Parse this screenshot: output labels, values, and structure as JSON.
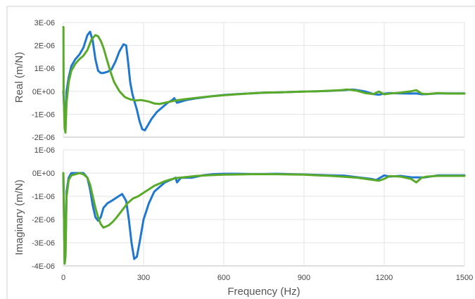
{
  "chart_data": [
    {
      "type": "line",
      "panel": "real",
      "ylabel": "Real (m/N)",
      "xlabel": "",
      "xlim": [
        0,
        1500
      ],
      "ylim": [
        -2e-06,
        3e-06
      ],
      "x_ticks": [
        "0",
        "300",
        "600",
        "900",
        "1200",
        "1500"
      ],
      "y_ticks": [
        "3E-06",
        "2E-06",
        "1E-06",
        "0E+00",
        "-1E-06",
        "-2E-06"
      ],
      "grid": true,
      "legend": "none",
      "series": [
        {
          "color": "#1f77d0",
          "x": [
            0,
            5,
            8,
            12,
            20,
            30,
            45,
            60,
            75,
            90,
            100,
            110,
            120,
            130,
            140,
            150,
            165,
            180,
            195,
            210,
            225,
            235,
            242,
            250,
            258,
            265,
            275,
            285,
            295,
            305,
            315,
            330,
            350,
            370,
            390,
            405,
            415,
            425,
            440,
            460,
            500,
            550,
            600,
            650,
            700,
            750,
            800,
            850,
            900,
            950,
            1000,
            1050,
            1080,
            1100,
            1130,
            1160,
            1180,
            1200,
            1220,
            1260,
            1300,
            1320,
            1340,
            1360,
            1400,
            1450,
            1500
          ],
          "y": [
            0,
            -1.2e-06,
            -1.5e-06,
            0,
            6e-07,
            1.1e-06,
            1.4e-06,
            1.6e-06,
            1.9e-06,
            2.45e-06,
            2.6e-06,
            2.2e-06,
            1.4e-06,
            9e-07,
            8e-07,
            8e-07,
            8.5e-07,
            9.5e-07,
            1.3e-06,
            1.75e-06,
            2.05e-06,
            2e-06,
            1.3e-06,
            4e-07,
            -1e-07,
            -4e-07,
            -8e-07,
            -1.3e-06,
            -1.65e-06,
            -1.7e-06,
            -1.5e-06,
            -1.2e-06,
            -9e-07,
            -7e-07,
            -5e-07,
            -4e-07,
            -3e-07,
            -5e-07,
            -4.5e-07,
            -3.8e-07,
            -3e-07,
            -2.2e-07,
            -1.6e-07,
            -1.2e-07,
            -9e-08,
            -6e-08,
            -5e-08,
            -3e-08,
            -1e-08,
            0,
            2e-08,
            5e-08,
            8e-08,
            5e-08,
            -1e-08,
            -1.2e-07,
            -1.5e-07,
            -1e-07,
            -8e-08,
            -9e-08,
            -1e-07,
            -9e-08,
            -1.3e-07,
            -1.2e-07,
            -9e-08,
            -9e-08,
            -9e-08
          ]
        },
        {
          "color": "#5aaa2a",
          "x": [
            0,
            0.5,
            1,
            5,
            8,
            12,
            20,
            30,
            45,
            60,
            75,
            90,
            105,
            120,
            130,
            140,
            150,
            160,
            175,
            190,
            210,
            230,
            250,
            270,
            290,
            300,
            320,
            340,
            360,
            380,
            400,
            420,
            450,
            500,
            550,
            600,
            650,
            700,
            750,
            800,
            850,
            900,
            950,
            1000,
            1040,
            1060,
            1080,
            1100,
            1130,
            1160,
            1180,
            1200,
            1220,
            1260,
            1300,
            1320,
            1340,
            1360,
            1400,
            1450,
            1500
          ],
          "y": [
            2.8e-06,
            2.8e-06,
            0,
            -1.6e-06,
            -1.8e-06,
            -5e-07,
            4e-07,
            9e-07,
            1.2e-06,
            1.4e-06,
            1.55e-06,
            1.8e-06,
            2.25e-06,
            2.45e-06,
            2.4e-06,
            2.2e-06,
            1.9e-06,
            1.5e-06,
            9e-07,
            4e-07,
            0,
            -2.5e-07,
            -3.5e-07,
            -4e-07,
            -3.8e-07,
            -4e-07,
            -4.5e-07,
            -5.3e-07,
            -5.5e-07,
            -5e-07,
            -4.5e-07,
            -4e-07,
            -3.5e-07,
            -2.8e-07,
            -2.2e-07,
            -1.7e-07,
            -1.3e-07,
            -9e-08,
            -6e-08,
            -5e-08,
            -3e-08,
            -1e-08,
            0,
            3e-08,
            5e-08,
            8e-08,
            6e-08,
            2e-08,
            -8e-08,
            -1.2e-07,
            -1e-08,
            -1.3e-07,
            -1e-07,
            -6e-08,
            0,
            5e-08,
            -1e-07,
            -1.2e-07,
            -8e-08,
            -1e-07,
            -1e-07
          ]
        }
      ]
    },
    {
      "type": "line",
      "panel": "imaginary",
      "ylabel": "Imaginary (m/N)",
      "xlabel": "Frequency (Hz)",
      "xlim": [
        0,
        1500
      ],
      "ylim": [
        -4e-06,
        1e-06
      ],
      "x_ticks": [
        "0",
        "300",
        "600",
        "900",
        "1200",
        "1500"
      ],
      "y_ticks": [
        "1E-06",
        "0E+00",
        "-1E-06",
        "-2E-06",
        "-3E-06",
        "-4E-06"
      ],
      "grid": true,
      "legend": "none",
      "series": [
        {
          "color": "#1f77d0",
          "x": [
            0,
            5,
            8,
            12,
            20,
            30,
            45,
            60,
            75,
            90,
            100,
            110,
            120,
            130,
            140,
            150,
            165,
            180,
            200,
            220,
            235,
            245,
            255,
            265,
            275,
            285,
            300,
            320,
            340,
            360,
            380,
            400,
            420,
            425,
            440,
            480,
            520,
            560,
            600,
            650,
            700,
            750,
            800,
            850,
            900,
            950,
            1000,
            1050,
            1100,
            1150,
            1170,
            1200,
            1220,
            1260,
            1300,
            1350,
            1400,
            1450,
            1500
          ],
          "y": [
            0,
            -3.9e-06,
            -3.5e-06,
            -8e-07,
            -2e-07,
            0,
            0,
            0,
            0,
            -2e-07,
            -7e-07,
            -1.4e-06,
            -1.9e-06,
            -2.05e-06,
            -1.9e-06,
            -1.5e-06,
            -1.3e-06,
            -1.2e-06,
            -1.05e-06,
            -9e-07,
            -1.2e-06,
            -2e-06,
            -3e-06,
            -3.7e-06,
            -3.6e-06,
            -3e-06,
            -2e-06,
            -1.3e-06,
            -8e-07,
            -6e-07,
            -4e-07,
            -3e-07,
            -2e-07,
            -4e-07,
            -2e-07,
            -2e-07,
            -1e-07,
            -5e-08,
            -3e-08,
            -3e-08,
            -4e-08,
            -4e-08,
            -3e-08,
            -5e-08,
            -6e-08,
            -8e-08,
            -1e-07,
            -1.1e-07,
            -1.8e-07,
            -2.5e-07,
            -3e-07,
            -1e-07,
            -1.5e-07,
            -1.2e-07,
            -1.8e-07,
            -1.9e-07,
            -1e-07,
            -1e-07,
            -1e-07
          ]
        },
        {
          "color": "#5aaa2a",
          "x": [
            0,
            5,
            8,
            12,
            20,
            30,
            45,
            60,
            75,
            90,
            100,
            110,
            120,
            130,
            140,
            150,
            160,
            170,
            185,
            200,
            220,
            240,
            260,
            280,
            300,
            320,
            340,
            360,
            380,
            400,
            420,
            460,
            500,
            550,
            600,
            650,
            700,
            750,
            800,
            850,
            900,
            950,
            1000,
            1050,
            1100,
            1150,
            1180,
            1200,
            1220,
            1260,
            1300,
            1320,
            1340,
            1360,
            1400,
            1450,
            1500
          ],
          "y": [
            0,
            -3.9e-06,
            -3.6e-06,
            -1e-06,
            -3e-07,
            -1e-07,
            -5e-08,
            0,
            -5e-08,
            -2e-07,
            -5e-07,
            -1e-06,
            -1.5e-06,
            -1.9e-06,
            -2.2e-06,
            -2.35e-06,
            -2.3e-06,
            -2.25e-06,
            -2.1e-06,
            -1.9e-06,
            -1.6e-06,
            -1.3e-06,
            -1.1e-06,
            -1e-06,
            -8.5e-07,
            -7e-07,
            -5.5e-07,
            -4.5e-07,
            -3.5e-07,
            -2.8e-07,
            -2.2e-07,
            -1.7e-07,
            -1.2e-07,
            -9e-08,
            -7e-08,
            -6e-08,
            -5e-08,
            -5e-08,
            -5e-08,
            -6e-08,
            -7e-08,
            -1e-07,
            -1.2e-07,
            -1.6e-07,
            -2e-07,
            -2.8e-07,
            -3.3e-07,
            -2.5e-07,
            -1.3e-07,
            -1.5e-07,
            -2.5e-07,
            -4e-07,
            -2e-07,
            -1.5e-07,
            -1.2e-07,
            -1.2e-07,
            -1.2e-07
          ]
        }
      ]
    }
  ]
}
